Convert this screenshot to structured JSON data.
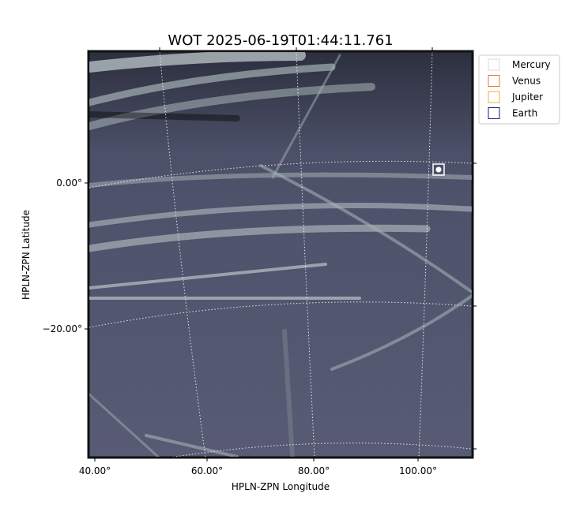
{
  "plot": {
    "title": "WOT 2025-06-19T01:44:11.761",
    "x_axis": {
      "label": "HPLN-ZPN Longitude",
      "ticks": [
        "40.00°",
        "60.00°",
        "80.00°",
        "100.00°"
      ]
    },
    "y_axis": {
      "label": "HPLN-ZPN Latitude",
      "ticks": [
        "0.00°",
        "−20.00°"
      ]
    },
    "legend": [
      {
        "name": "Mercury",
        "color": "#d9d9d9"
      },
      {
        "name": "Venus",
        "color": "#e0793a"
      },
      {
        "name": "Jupiter",
        "color": "#e3b33c"
      },
      {
        "name": "Earth",
        "color": "#1a1a80"
      }
    ]
  }
}
